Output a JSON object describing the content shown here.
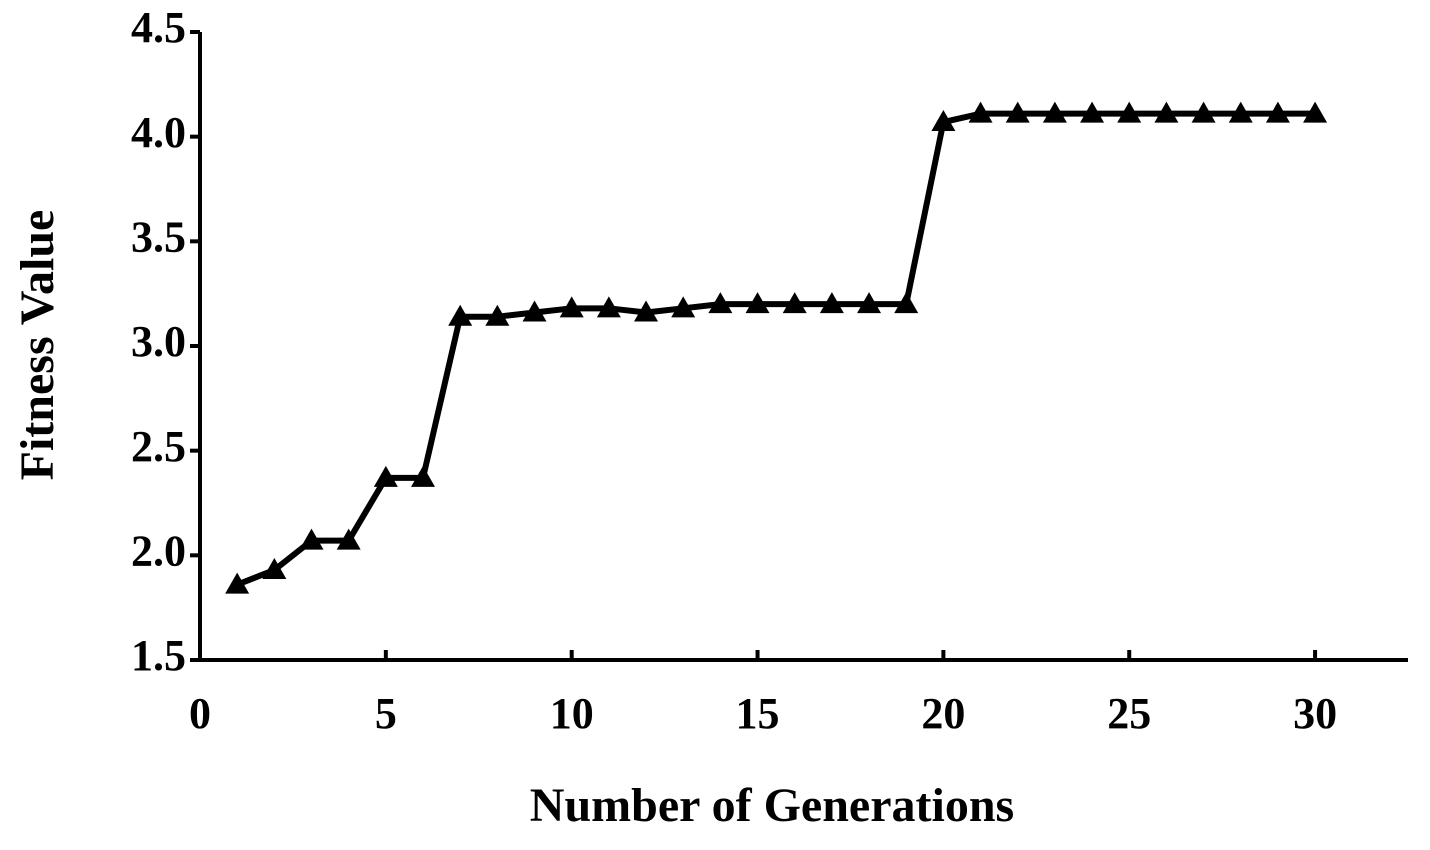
{
  "chart_data": {
    "type": "line",
    "x_label": "Number of Generations",
    "y_label": "Fitness Value",
    "x": [
      1,
      2,
      3,
      4,
      5,
      6,
      7,
      8,
      9,
      10,
      11,
      12,
      13,
      14,
      15,
      16,
      17,
      18,
      19,
      20,
      21,
      22,
      23,
      24,
      25,
      26,
      27,
      28,
      29,
      30
    ],
    "series": [
      {
        "color": "#000000",
        "values": [
          1.86,
          1.93,
          2.07,
          2.07,
          2.37,
          2.37,
          3.14,
          3.14,
          3.16,
          3.18,
          3.18,
          3.16,
          3.18,
          3.2,
          3.2,
          3.2,
          3.2,
          3.2,
          3.2,
          4.07,
          4.11,
          4.11,
          4.11,
          4.11,
          4.11,
          4.11,
          4.11,
          4.11,
          4.11,
          4.11
        ]
      }
    ],
    "xlim": [
      0,
      32.5
    ],
    "xticks": [
      0,
      5,
      10,
      15,
      20,
      25,
      30
    ],
    "ylim": [
      1.5,
      4.5
    ],
    "yticks": [
      {
        "value": 1.5,
        "label": "1.5"
      },
      {
        "value": 2,
        "label": "2.0"
      },
      {
        "value": 2.5,
        "label": "2.5"
      },
      {
        "value": 3,
        "label": "3.0"
      },
      {
        "value": 3.5,
        "label": "3.5"
      },
      {
        "value": 4,
        "label": "4.0"
      },
      {
        "value": 4.5,
        "label": "4.5"
      }
    ],
    "marker": "triangle"
  }
}
